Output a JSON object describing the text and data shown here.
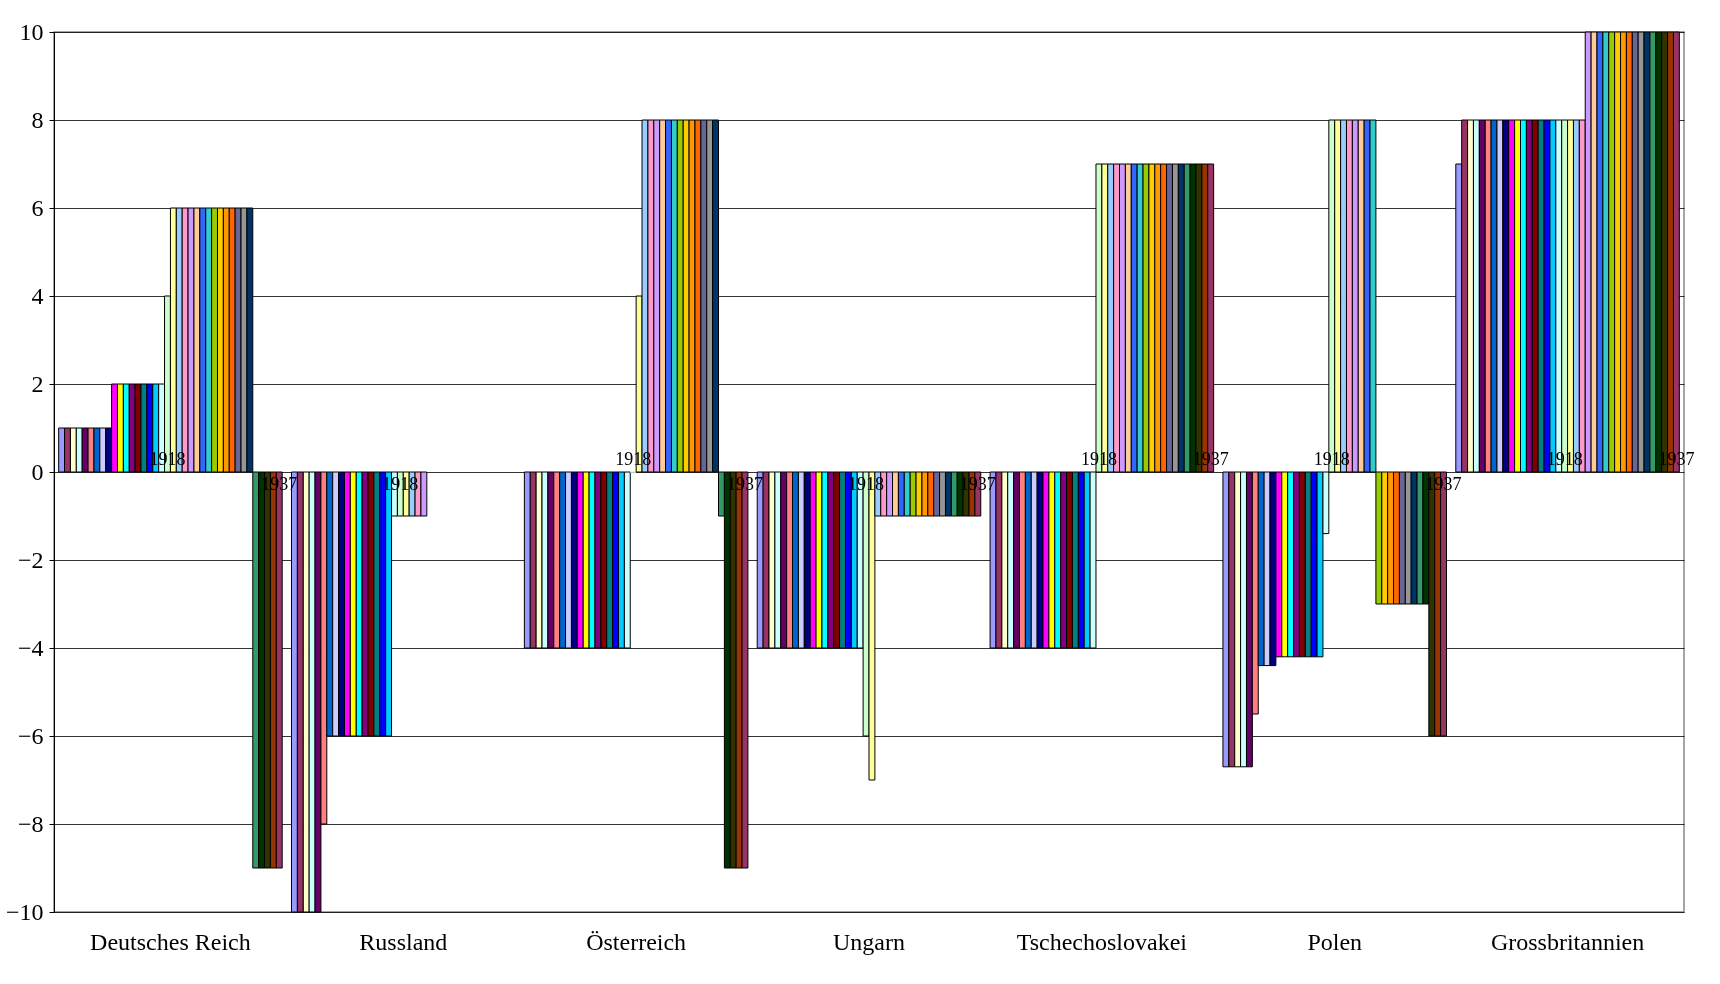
{
  "chart_data": {
    "type": "bar",
    "categories": [
      "Deutsches Reich",
      "Russland",
      "Österreich",
      "Ungarn",
      "Tschechoslovakei",
      "Polen",
      "Grossbritannien"
    ],
    "ylim": [
      -10,
      10
    ],
    "yticks": [
      -10,
      -8,
      -6,
      -4,
      -2,
      0,
      2,
      4,
      6,
      8,
      10
    ],
    "grid": "y",
    "legend": false,
    "series": [
      {
        "color": "#9999ff",
        "values": [
          1,
          -10,
          -4,
          -4,
          -4,
          -6.7,
          7
        ]
      },
      {
        "color": "#993366",
        "values": [
          1,
          -10,
          -4,
          -4,
          -4,
          -6.7,
          8
        ]
      },
      {
        "color": "#ffffcc",
        "values": [
          1,
          -10,
          -4,
          -4,
          -4,
          -6.7,
          8
        ]
      },
      {
        "color": "#ccffff",
        "values": [
          1,
          -10,
          -4,
          -4,
          -4,
          -6.7,
          8
        ]
      },
      {
        "color": "#660066",
        "values": [
          1,
          -10,
          -4,
          -4,
          -4,
          -6.7,
          8
        ]
      },
      {
        "color": "#ff8080",
        "values": [
          1,
          -8,
          -4,
          -4,
          -4,
          -5.5,
          8
        ]
      },
      {
        "color": "#0066cc",
        "values": [
          1,
          -6,
          -4,
          -4,
          -4,
          -4.4,
          8
        ]
      },
      {
        "color": "#ccccff",
        "values": [
          1,
          -6,
          -4,
          -4,
          -4,
          -4.4,
          8
        ]
      },
      {
        "color": "#000080",
        "values": [
          1,
          -6,
          -4,
          -4,
          -4,
          -4.4,
          8
        ]
      },
      {
        "color": "#ff00ff",
        "values": [
          2,
          -6,
          -4,
          -4,
          -4,
          -4.2,
          8
        ]
      },
      {
        "color": "#ffff00",
        "values": [
          2,
          -6,
          -4,
          -4,
          -4,
          -4.2,
          8
        ]
      },
      {
        "color": "#00ffff",
        "values": [
          2,
          -6,
          -4,
          -4,
          -4,
          -4.2,
          8
        ]
      },
      {
        "color": "#800080",
        "values": [
          2,
          -6,
          -4,
          -4,
          -4,
          -4.2,
          8
        ]
      },
      {
        "color": "#800000",
        "values": [
          2,
          -6,
          -4,
          -4,
          -4,
          -4.2,
          8
        ]
      },
      {
        "color": "#008080",
        "values": [
          2,
          -6,
          -4,
          -4,
          -4,
          -4.2,
          8
        ]
      },
      {
        "color": "#0000ff",
        "values": [
          2,
          -6,
          -4,
          -4,
          -4,
          -4.2,
          8
        ]
      },
      {
        "color": "#00ccff",
        "values": [
          2,
          -6,
          -4,
          -4,
          -4,
          -4.2,
          8
        ]
      },
      {
        "color": "#ccffff",
        "values": [
          2,
          -1,
          -4,
          -4,
          -4,
          -1.4,
          8
        ]
      },
      {
        "name": "1918",
        "color": "#ccffcc",
        "values": [
          4,
          -1,
          0,
          -6,
          7,
          8,
          8
        ]
      },
      {
        "color": "#ffff99",
        "values": [
          6,
          -1,
          4,
          -7,
          7,
          8,
          8
        ]
      },
      {
        "color": "#99ccff",
        "values": [
          6,
          -1,
          8,
          -1,
          7,
          8,
          8
        ]
      },
      {
        "color": "#ff99cc",
        "values": [
          6,
          -1,
          8,
          -1,
          7,
          8,
          8
        ]
      },
      {
        "color": "#cc99ff",
        "values": [
          6,
          -1,
          8,
          -1,
          7,
          8,
          10
        ]
      },
      {
        "color": "#ffcc99",
        "values": [
          6,
          null,
          8,
          -1,
          7,
          8,
          10
        ]
      },
      {
        "color": "#3366ff",
        "values": [
          6,
          null,
          8,
          -1,
          7,
          8,
          10
        ]
      },
      {
        "color": "#33cccc",
        "values": [
          6,
          null,
          8,
          -1,
          7,
          8,
          10
        ]
      },
      {
        "color": "#99cc00",
        "values": [
          6,
          null,
          8,
          -1,
          7,
          -3,
          10
        ]
      },
      {
        "color": "#ffcc00",
        "values": [
          6,
          null,
          8,
          -1,
          7,
          -3,
          10
        ]
      },
      {
        "color": "#ff9900",
        "values": [
          6,
          null,
          8,
          -1,
          7,
          -3,
          10
        ]
      },
      {
        "color": "#ff6600",
        "values": [
          6,
          null,
          8,
          -1,
          7,
          -3,
          10
        ]
      },
      {
        "color": "#666699",
        "values": [
          6,
          null,
          8,
          -1,
          7,
          -3,
          10
        ]
      },
      {
        "color": "#969696",
        "values": [
          6,
          null,
          8,
          -1,
          7,
          -3,
          10
        ]
      },
      {
        "color": "#003366",
        "values": [
          6,
          null,
          8,
          -1,
          7,
          -3,
          10
        ]
      },
      {
        "color": "#339966",
        "values": [
          -9,
          null,
          -1,
          -1,
          7,
          -3,
          10
        ]
      },
      {
        "color": "#003300",
        "values": [
          -9,
          null,
          -9,
          -1,
          7,
          -3,
          10
        ]
      },
      {
        "color": "#333300",
        "values": [
          -9,
          null,
          -9,
          -1,
          7,
          -6,
          10
        ]
      },
      {
        "color": "#993300",
        "values": [
          -9,
          null,
          -9,
          -1,
          7,
          -6,
          10
        ]
      },
      {
        "name": "1937",
        "color": "#993366",
        "values": [
          -9,
          null,
          -9,
          -1,
          7,
          -6,
          10
        ]
      }
    ]
  }
}
